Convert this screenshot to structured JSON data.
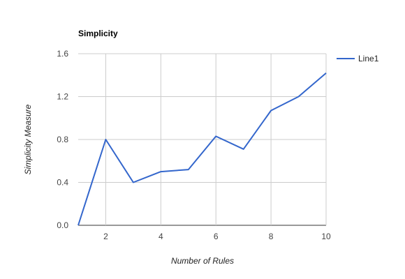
{
  "chart_data": {
    "type": "line",
    "title": "Simplicity",
    "xlabel": "Number of Rules",
    "ylabel": "Simplicity Measure",
    "xlim": [
      1,
      10
    ],
    "ylim": [
      0,
      1.6
    ],
    "x_ticks": [
      2,
      4,
      6,
      8,
      10
    ],
    "y_ticks": [
      0.0,
      0.4,
      0.8,
      1.2,
      1.6
    ],
    "x_tick_labels": [
      "2",
      "4",
      "6",
      "8",
      "10"
    ],
    "y_tick_labels": [
      "0.0",
      "0.4",
      "0.8",
      "1.2",
      "1.6"
    ],
    "grid": true,
    "legend_position": "right",
    "series": [
      {
        "name": "Line1",
        "color": "#3366cc",
        "x": [
          1,
          2,
          3,
          4,
          5,
          6,
          7,
          8,
          9,
          10
        ],
        "y": [
          0.0,
          0.8,
          0.4,
          0.5,
          0.52,
          0.83,
          0.71,
          1.07,
          1.2,
          1.42
        ]
      }
    ]
  }
}
